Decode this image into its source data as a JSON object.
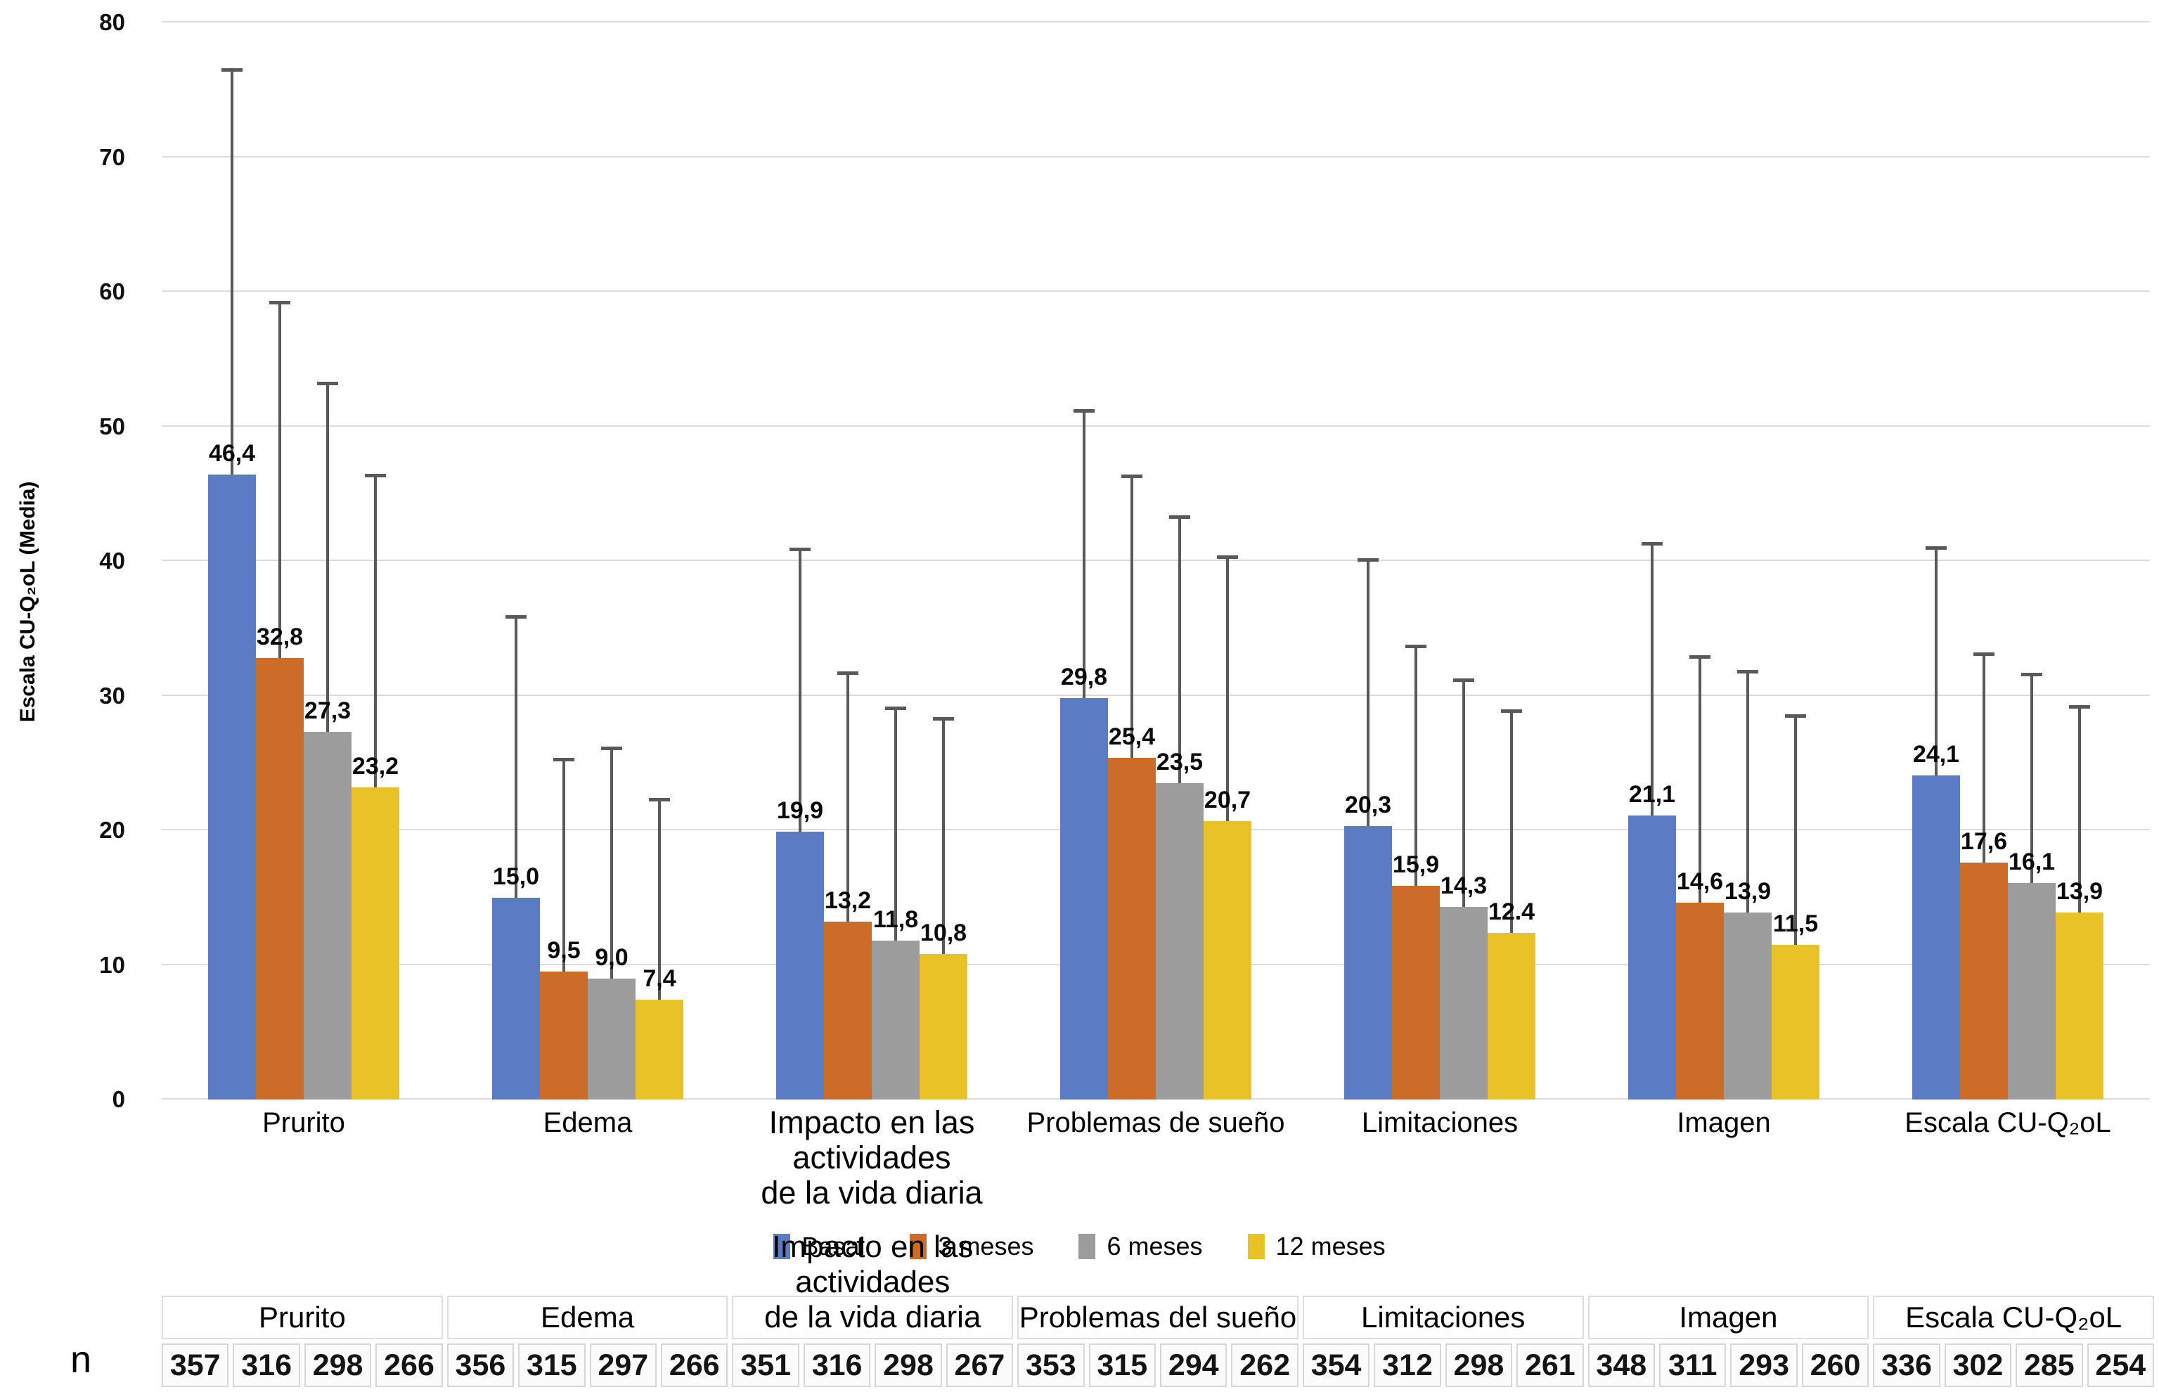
{
  "y_axis": {
    "title": "Escala CU-Q₂oL (Media)",
    "ticks": [
      0,
      10,
      20,
      30,
      40,
      50,
      60,
      70,
      80
    ]
  },
  "colors": {
    "basal": "#5B7CC4",
    "meses3": "#CC6C28",
    "meses6": "#9C9C9C",
    "meses12": "#E8C227",
    "error_bar": "#595959",
    "gridline": "#DCDCDC"
  },
  "chart_data": {
    "type": "bar",
    "title": "",
    "xlabel": "",
    "ylabel": "Escala CU-Q₂oL (Media)",
    "ylim": [
      0,
      80
    ],
    "grid": true,
    "legend_position": "bottom",
    "categories": [
      "Prurito",
      "Edema",
      "Impacto en las actividades\nde la vida diaria",
      "Problemas de sueño",
      "Limitaciones",
      "Imagen",
      "Escala CU-Q₂oL"
    ],
    "series": [
      {
        "name": "Basal",
        "color": "#5B7CC4",
        "values": [
          46.4,
          15.0,
          19.9,
          29.8,
          20.3,
          21.1,
          24.1
        ],
        "labels": [
          "46,4",
          "15,0",
          "19,9",
          "29,8",
          "20,3",
          "21,1",
          "24,1"
        ],
        "error_tops": [
          76.6,
          36.0,
          41.0,
          51.3,
          40.2,
          41.4,
          41.1
        ]
      },
      {
        "name": "3 meses",
        "color": "#CC6C28",
        "values": [
          32.8,
          9.5,
          13.2,
          25.4,
          15.9,
          14.6,
          17.6
        ],
        "labels": [
          "32,8",
          "9,5",
          "13,2",
          "25,4",
          "15,9",
          "14,6",
          "17,6"
        ],
        "error_tops": [
          59.3,
          25.4,
          31.8,
          46.4,
          33.8,
          33.0,
          33.2
        ]
      },
      {
        "name": "6 meses",
        "color": "#9C9C9C",
        "values": [
          27.3,
          9.0,
          11.8,
          23.5,
          14.3,
          13.9,
          16.1
        ],
        "labels": [
          "27,3",
          "9,0",
          "11,8",
          "23,5",
          "14,3",
          "13,9",
          "16,1"
        ],
        "error_tops": [
          53.3,
          26.2,
          29.2,
          43.4,
          31.3,
          31.9,
          31.7
        ]
      },
      {
        "name": "12 meses",
        "color": "#E8C227",
        "values": [
          23.2,
          7.4,
          10.8,
          20.7,
          12.4,
          11.5,
          13.9
        ],
        "labels": [
          "23,2",
          "7,4",
          "10,8",
          "20,7",
          "12.4",
          "11,5",
          "13,9"
        ],
        "error_tops": [
          46.5,
          22.4,
          28.4,
          40.4,
          29.0,
          28.6,
          29.3
        ]
      }
    ]
  },
  "legend": {
    "items": [
      "Basal",
      "3 meses",
      "6 meses",
      "12 meses"
    ]
  },
  "table": {
    "row_label": "n",
    "groups": [
      {
        "label": "Prurito",
        "values": [
          357,
          316,
          298,
          266
        ]
      },
      {
        "label": "Edema",
        "values": [
          356,
          315,
          297,
          266
        ]
      },
      {
        "label": "Impacto en las actividades\nde la vida diaria",
        "values": [
          351,
          316,
          298,
          267
        ]
      },
      {
        "label": "Problemas del sueño",
        "values": [
          353,
          315,
          294,
          262
        ]
      },
      {
        "label": "Limitaciones",
        "values": [
          354,
          312,
          298,
          261
        ]
      },
      {
        "label": "Imagen",
        "values": [
          348,
          311,
          293,
          260
        ]
      },
      {
        "label": "Escala CU-Q₂oL",
        "values": [
          336,
          302,
          285,
          254
        ]
      }
    ]
  }
}
